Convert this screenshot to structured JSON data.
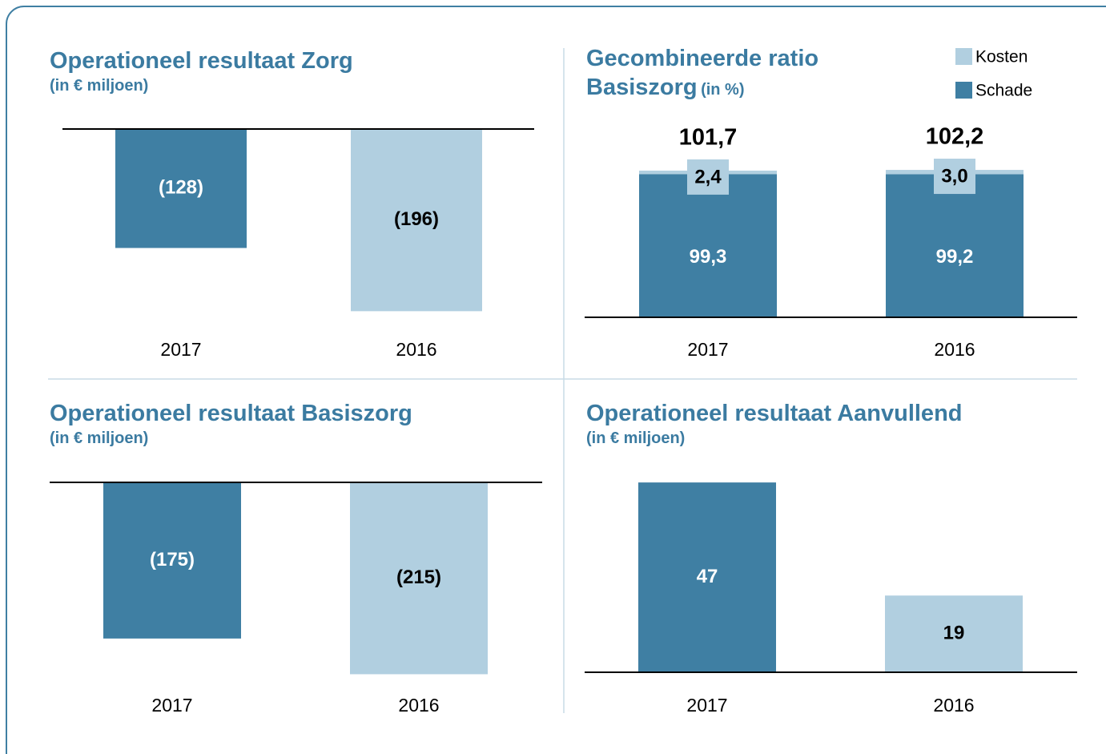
{
  "chart_data": [
    {
      "type": "bar",
      "title": "Operationeel resultaat Zorg",
      "subtitle": "(in € miljoen)",
      "categories": [
        "2017",
        "2016"
      ],
      "values": [
        -128,
        -196
      ],
      "value_labels": [
        "(128)",
        "(196)"
      ],
      "colors": [
        "#3f7fa3",
        "#b1cfe0"
      ],
      "ylim": [
        -200,
        0
      ]
    },
    {
      "type": "stacked_bar",
      "title": "Gecombineerde ratio Basiszorg",
      "subtitle": "(in %)",
      "categories": [
        "2017",
        "2016"
      ],
      "series": [
        {
          "name": "Schade",
          "color": "#3f7fa3",
          "values": [
            99.3,
            99.2
          ],
          "value_labels": [
            "99,3",
            "99,2"
          ]
        },
        {
          "name": "Kosten",
          "color": "#b1cfe0",
          "values": [
            2.4,
            3.0
          ],
          "value_labels": [
            "2,4",
            "3,0"
          ]
        }
      ],
      "totals": [
        101.7,
        102.2
      ],
      "total_labels": [
        "101,7",
        "102,2"
      ],
      "ylim": [
        0,
        140
      ]
    },
    {
      "type": "bar",
      "title": "Operationeel resultaat Basiszorg",
      "subtitle": "(in € miljoen)",
      "categories": [
        "2017",
        "2016"
      ],
      "values": [
        -175,
        -215
      ],
      "value_labels": [
        "(175)",
        "(215)"
      ],
      "colors": [
        "#3f7fa3",
        "#b1cfe0"
      ],
      "ylim": [
        -220,
        0
      ]
    },
    {
      "type": "bar",
      "title": "Operationeel resultaat Aanvullend",
      "subtitle": "(in € miljoen)",
      "categories": [
        "2017",
        "2016"
      ],
      "values": [
        47,
        19
      ],
      "colors": [
        "#3f7fa3",
        "#b1cfe0"
      ],
      "ylim": [
        0,
        50
      ]
    }
  ]
}
